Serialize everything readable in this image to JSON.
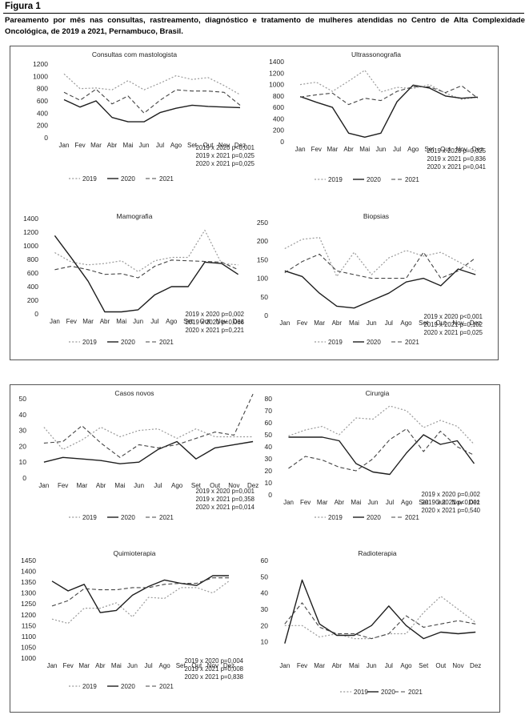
{
  "figure": {
    "label": "Figura 1",
    "caption": "Pareamento por mês nas consultas, rastreamento, diagnóstico e tratamento de mulheres atendidas no Centro de Alta Complexidade Oncológica, de 2019 a 2021, Pernambuco, Brasil."
  },
  "styles": {
    "2019": "#9a9a9a",
    "2020": "#1e1e1e",
    "2021": "#444444"
  },
  "chart_data": [
    {
      "type": "line",
      "title": "Consultas com mastologista",
      "categories": [
        "Jan",
        "Fev",
        "Mar",
        "Abr",
        "Mai",
        "Jun",
        "Jul",
        "Ago",
        "Set",
        "Out",
        "Nov",
        "Dez"
      ],
      "ylim": [
        0,
        1200
      ],
      "yticks": [
        0,
        200,
        400,
        600,
        800,
        1000,
        1200
      ],
      "series": [
        {
          "name": "2019",
          "values": [
            1040,
            800,
            810,
            780,
            930,
            780,
            890,
            1010,
            950,
            980,
            850,
            700
          ]
        },
        {
          "name": "2020",
          "values": [
            620,
            500,
            600,
            330,
            260,
            260,
            410,
            480,
            530,
            510,
            500,
            490
          ]
        },
        {
          "name": "2021",
          "values": [
            740,
            610,
            790,
            550,
            680,
            400,
            610,
            780,
            760,
            760,
            740,
            530
          ]
        }
      ],
      "stats": [
        "2019 x 2020 p<0,001",
        "2019 x 2021 p=0,025",
        "2020 x 2021 p=0,025"
      ]
    },
    {
      "type": "line",
      "title": "Ultrassonografia",
      "categories": [
        "Jan",
        "Fev",
        "Mar",
        "Abr",
        "Mai",
        "Jun",
        "Jul",
        "Ago",
        "Set",
        "Out",
        "Nov",
        "Dez"
      ],
      "ylim": [
        0,
        1400
      ],
      "yticks": [
        0,
        200,
        400,
        600,
        800,
        1000,
        1200,
        1400
      ],
      "series": [
        {
          "name": "2019",
          "values": [
            1000,
            1040,
            880,
            1060,
            1250,
            870,
            950,
            930,
            1000,
            850,
            740,
            780
          ]
        },
        {
          "name": "2020",
          "values": [
            790,
            690,
            600,
            150,
            80,
            150,
            700,
            990,
            940,
            800,
            760,
            780
          ]
        },
        {
          "name": "2021",
          "values": [
            780,
            820,
            850,
            650,
            760,
            720,
            880,
            960,
            960,
            860,
            980,
            760
          ]
        }
      ],
      "stats": [
        "2019 x 2020 p=0,025",
        "2019 x 2021 p=0,836",
        "2020 x 2021 p=0,041"
      ]
    },
    {
      "type": "line",
      "title": "Mamografia",
      "categories": [
        "Jan",
        "Fev",
        "Mar",
        "Abr",
        "Mai",
        "Jun",
        "Jul",
        "Ago",
        "Set",
        "Out",
        "Nov",
        "Dez"
      ],
      "ylim": [
        0,
        1400
      ],
      "yticks": [
        0,
        200,
        400,
        600,
        800,
        1000,
        1200,
        1400
      ],
      "series": [
        {
          "name": "2019",
          "values": [
            900,
            760,
            720,
            740,
            780,
            620,
            780,
            830,
            830,
            1230,
            740,
            720
          ]
        },
        {
          "name": "2020",
          "values": [
            1150,
            820,
            480,
            30,
            30,
            60,
            280,
            400,
            400,
            760,
            740,
            580
          ]
        },
        {
          "name": "2021",
          "values": [
            650,
            700,
            650,
            580,
            590,
            530,
            700,
            790,
            780,
            770,
            760,
            650
          ]
        }
      ],
      "stats": [
        "2019 x 2020 p=0,002",
        "2019 x 2021 p=0,066",
        "2020 x 2021 p=0,221"
      ]
    },
    {
      "type": "line",
      "title": "Biopsias",
      "categories": [
        "Jan",
        "Fev",
        "Mar",
        "Abr",
        "Mai",
        "Jun",
        "Jul",
        "Ago",
        "Set",
        "Out",
        "Nov",
        "Dez"
      ],
      "ylim": [
        0,
        250
      ],
      "yticks": [
        0,
        50,
        100,
        150,
        200,
        250
      ],
      "series": [
        {
          "name": "2019",
          "values": [
            180,
            205,
            210,
            105,
            170,
            110,
            155,
            175,
            160,
            170,
            145,
            120
          ]
        },
        {
          "name": "2020",
          "values": [
            120,
            105,
            60,
            25,
            20,
            40,
            60,
            90,
            100,
            80,
            125,
            110
          ]
        },
        {
          "name": "2021",
          "values": [
            115,
            145,
            165,
            120,
            110,
            100,
            100,
            100,
            170,
            100,
            120,
            155
          ]
        }
      ],
      "stats": [
        "2019 x 2020 p<0,001",
        "2019 x 2021 p=0,102",
        "2020 x 2021 p=0,025"
      ]
    },
    {
      "type": "line",
      "title": "Casos novos",
      "categories": [
        "Jan",
        "Fev",
        "Mar",
        "Abr",
        "Mai",
        "Jun",
        "Jul",
        "Ago",
        "Set",
        "Out",
        "Nov",
        "Dez"
      ],
      "ylim": [
        0,
        50
      ],
      "yticks": [
        0,
        10,
        20,
        30,
        40,
        50
      ],
      "series": [
        {
          "name": "2019",
          "values": [
            32,
            18,
            24,
            32,
            26,
            30,
            31,
            25,
            31,
            26,
            26,
            26
          ]
        },
        {
          "name": "2020",
          "values": [
            10,
            13,
            12,
            11,
            9,
            10,
            18,
            23,
            12,
            19,
            21,
            23
          ]
        },
        {
          "name": "2021",
          "values": [
            22,
            23,
            33,
            22,
            13,
            21,
            19,
            21,
            25,
            29,
            27,
            53
          ]
        }
      ],
      "stats": [
        "2019 x 2020 p=0,001",
        "2019 x 2021 p=0,358",
        "2020 x 2021 p=0,014"
      ]
    },
    {
      "type": "line",
      "title": "Cirurgia",
      "categories": [
        "Jan",
        "Fev",
        "Mar",
        "Abr",
        "Mai",
        "Jun",
        "Jul",
        "Ago",
        "Set",
        "Out",
        "Nov",
        "Dez"
      ],
      "ylim": [
        0,
        80
      ],
      "yticks": [
        0,
        10,
        20,
        30,
        40,
        50,
        60,
        70,
        80
      ],
      "series": [
        {
          "name": "2019",
          "values": [
            49,
            54,
            57,
            50,
            64,
            63,
            74,
            70,
            56,
            62,
            57,
            42
          ]
        },
        {
          "name": "2020",
          "values": [
            48,
            48,
            48,
            45,
            26,
            19,
            17,
            35,
            50,
            42,
            45,
            26
          ]
        },
        {
          "name": "2021",
          "values": [
            22,
            32,
            29,
            23,
            20,
            30,
            46,
            55,
            36,
            53,
            40,
            33
          ]
        }
      ],
      "stats": [
        "2019 x 2020 p=0,002",
        "2019 x 2021 p<0,001",
        "2020 x 2021 p=0,540"
      ]
    },
    {
      "type": "line",
      "title": "Quimioterapia",
      "categories": [
        "Jan",
        "Fev",
        "Mar",
        "Abr",
        "Mai",
        "Jun",
        "Jul",
        "Ago",
        "Set",
        "Out",
        "Nov",
        "Dez"
      ],
      "ylim": [
        1000,
        1450
      ],
      "yticks": [
        1000,
        1050,
        1100,
        1150,
        1200,
        1250,
        1300,
        1350,
        1400,
        1450
      ],
      "series": [
        {
          "name": "2019",
          "values": [
            1180,
            1160,
            1230,
            1230,
            1255,
            1190,
            1280,
            1275,
            1325,
            1325,
            1300,
            1355
          ]
        },
        {
          "name": "2020",
          "values": [
            1355,
            1310,
            1340,
            1210,
            1220,
            1290,
            1330,
            1360,
            1345,
            1335,
            1380,
            1380
          ]
        },
        {
          "name": "2021",
          "values": [
            1240,
            1265,
            1320,
            1315,
            1315,
            1325,
            1325,
            1340,
            1345,
            1345,
            1370,
            1370
          ]
        }
      ],
      "stats": [
        "2019 x 2020 p=0,004",
        "2019 x 2021 p=0,008",
        "2020 x 2021 p=0,838"
      ]
    },
    {
      "type": "line",
      "title": "Radioterapia",
      "categories": [
        "Jan",
        "Fev",
        "Mar",
        "Abr",
        "Mai",
        "Jun",
        "Jul",
        "Ago",
        "Set",
        "Out",
        "Nov",
        "Dez"
      ],
      "ylim": [
        0,
        60
      ],
      "yticks": [
        10,
        20,
        30,
        40,
        50,
        60
      ],
      "series": [
        {
          "name": "2019",
          "values": [
            20,
            20,
            13,
            15,
            12,
            12,
            15,
            15,
            28,
            38,
            30,
            22
          ]
        },
        {
          "name": "2020",
          "values": [
            9,
            48,
            21,
            14,
            14,
            20,
            32,
            20,
            12,
            16,
            15,
            16
          ]
        },
        {
          "name": "2021",
          "values": [
            21,
            34,
            19,
            15,
            15,
            12,
            15,
            26,
            19,
            21,
            23,
            21
          ]
        }
      ],
      "stats": []
    }
  ]
}
